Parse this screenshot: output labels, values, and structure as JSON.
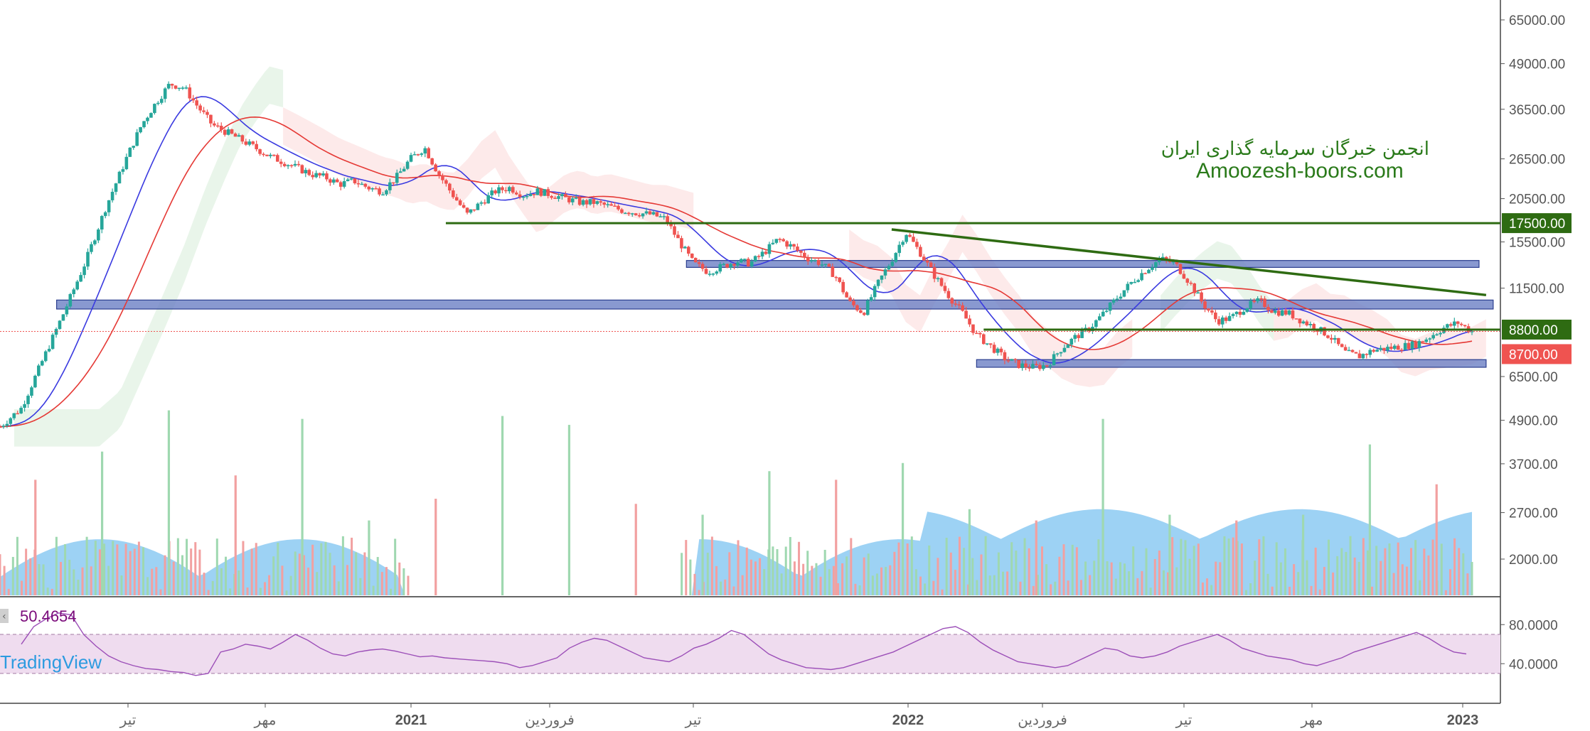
{
  "watermark": {
    "persian": "انجمن خبرگان سرمایه گذاری ایران",
    "site": "Amoozesh-boors.com"
  },
  "brand": "TradingView",
  "colors": {
    "up": "#26a69a",
    "down": "#ef5350",
    "ma_fast": "#3a3ae0",
    "ma_slow": "#e53935",
    "level_line": "#2e6b12",
    "zone": "#6c80c4",
    "zone_border": "#2c3f8f",
    "rsi_line": "#9c4fb8",
    "rsi_band": "#efdcef",
    "volume": "#7cc3f0",
    "last_price": "#ef5350"
  },
  "chart_data": [
    {
      "type": "candlestick",
      "scale": "log",
      "y_ticks": [
        "65000.00",
        "49000.00",
        "36500.00",
        "26500.00",
        "20500.00",
        "15500.00",
        "11500.00",
        "6500.00",
        "4900.00",
        "3700.00",
        "2700.00",
        "2000.00"
      ],
      "x_ticks": [
        {
          "label": "تیر",
          "year": false
        },
        {
          "label": "مهر",
          "year": false
        },
        {
          "label": "2021",
          "year": true
        },
        {
          "label": "فروردین",
          "year": false
        },
        {
          "label": "تیر",
          "year": false
        },
        {
          "label": "2022",
          "year": true
        },
        {
          "label": "فروردین",
          "year": false
        },
        {
          "label": "تیر",
          "year": false
        },
        {
          "label": "مهر",
          "year": false
        },
        {
          "label": "2023",
          "year": true
        }
      ],
      "price_path": [
        [
          0,
          4700
        ],
        [
          3,
          5300
        ],
        [
          6,
          7200
        ],
        [
          9,
          9800
        ],
        [
          12,
          13500
        ],
        [
          15,
          19500
        ],
        [
          18,
          27000
        ],
        [
          20,
          33000
        ],
        [
          22,
          38000
        ],
        [
          24,
          43000
        ],
        [
          26,
          42000
        ],
        [
          28,
          37000
        ],
        [
          30,
          33000
        ],
        [
          32,
          31500
        ],
        [
          34,
          30000
        ],
        [
          36,
          28500
        ],
        [
          38,
          27000
        ],
        [
          40,
          26000
        ],
        [
          42,
          25000
        ],
        [
          44,
          24000
        ],
        [
          46,
          23500
        ],
        [
          48,
          22500
        ],
        [
          50,
          23000
        ],
        [
          52,
          22000
        ],
        [
          54,
          21500
        ],
        [
          56,
          23500
        ],
        [
          58,
          26500
        ],
        [
          60,
          28500
        ],
        [
          62,
          24000
        ],
        [
          64,
          21000
        ],
        [
          66,
          18500
        ],
        [
          68,
          20000
        ],
        [
          70,
          21500
        ],
        [
          72,
          22000
        ],
        [
          74,
          21000
        ],
        [
          76,
          21500
        ],
        [
          78,
          21000
        ],
        [
          80,
          20500
        ],
        [
          82,
          20000
        ],
        [
          84,
          20000
        ],
        [
          86,
          19500
        ],
        [
          88,
          19000
        ],
        [
          90,
          18700
        ],
        [
          92,
          18500
        ],
        [
          94,
          18000
        ],
        [
          96,
          15500
        ],
        [
          98,
          13500
        ],
        [
          100,
          12800
        ],
        [
          102,
          13200
        ],
        [
          104,
          13700
        ],
        [
          106,
          13500
        ],
        [
          108,
          14500
        ],
        [
          110,
          15800
        ],
        [
          112,
          15000
        ],
        [
          114,
          14000
        ],
        [
          116,
          13500
        ],
        [
          118,
          12500
        ],
        [
          120,
          10500
        ],
        [
          122,
          9800
        ],
        [
          124,
          11800
        ],
        [
          126,
          13800
        ],
        [
          128,
          16500
        ],
        [
          130,
          14500
        ],
        [
          132,
          12500
        ],
        [
          134,
          11000
        ],
        [
          136,
          9800
        ],
        [
          138,
          8500
        ],
        [
          140,
          7900
        ],
        [
          142,
          7300
        ],
        [
          144,
          7000
        ],
        [
          146,
          6900
        ],
        [
          148,
          7000
        ],
        [
          150,
          7800
        ],
        [
          152,
          8400
        ],
        [
          154,
          8900
        ],
        [
          156,
          9800
        ],
        [
          158,
          10900
        ],
        [
          160,
          12000
        ],
        [
          162,
          13000
        ],
        [
          164,
          13900
        ],
        [
          166,
          13500
        ],
        [
          168,
          12000
        ],
        [
          170,
          10400
        ],
        [
          172,
          9300
        ],
        [
          174,
          9500
        ],
        [
          176,
          10200
        ],
        [
          178,
          10600
        ],
        [
          180,
          9900
        ],
        [
          182,
          9800
        ],
        [
          184,
          9300
        ],
        [
          186,
          8900
        ],
        [
          188,
          8400
        ],
        [
          190,
          7600
        ],
        [
          192,
          7400
        ],
        [
          194,
          7700
        ],
        [
          196,
          7800
        ],
        [
          198,
          7900
        ],
        [
          200,
          8000
        ],
        [
          202,
          8400
        ],
        [
          204,
          8900
        ],
        [
          206,
          9200
        ],
        [
          208,
          8700
        ]
      ],
      "volume_peaks": [
        3300,
        4000,
        5300,
        3400,
        5000,
        2500,
        2900,
        5100,
        4800,
        2800,
        2600,
        3500,
        3300,
        3700,
        2700,
        2500,
        5000,
        2600,
        2500,
        2600,
        4200,
        3200
      ]
    },
    {
      "type": "line",
      "name": "RSI",
      "last_value": "50.4654",
      "y_ticks": [
        "80.0000",
        "40.0000"
      ],
      "band": [
        30,
        70
      ],
      "values": [
        60,
        78,
        86,
        92,
        90,
        70,
        58,
        48,
        42,
        38,
        35,
        34,
        32,
        31,
        28,
        30,
        52,
        55,
        60,
        58,
        55,
        62,
        70,
        64,
        56,
        50,
        48,
        52,
        54,
        55,
        53,
        50,
        47,
        48,
        46,
        45,
        44,
        43,
        42,
        40,
        36,
        38,
        42,
        46,
        56,
        62,
        66,
        64,
        58,
        52,
        46,
        44,
        42,
        48,
        56,
        60,
        66,
        74,
        70,
        60,
        50,
        44,
        40,
        36,
        35,
        34,
        36,
        40,
        44,
        48,
        52,
        58,
        64,
        70,
        76,
        78,
        72,
        62,
        54,
        48,
        42,
        40,
        38,
        36,
        38,
        44,
        50,
        56,
        54,
        48,
        46,
        48,
        52,
        58,
        62,
        66,
        70,
        64,
        56,
        52,
        48,
        46,
        44,
        40,
        38,
        42,
        46,
        52,
        56,
        60,
        64,
        68,
        72,
        66,
        58,
        52,
        50
      ]
    }
  ],
  "annotations": {
    "levels": [
      {
        "price": 17500,
        "label": "17500.00"
      },
      {
        "price": 8800,
        "label": "8800.00"
      }
    ],
    "last_price": {
      "price": 8700,
      "label": "8700.00"
    },
    "zones": [
      {
        "from": 10050,
        "to": 10650,
        "start": 8,
        "end": 211
      },
      {
        "from": 13150,
        "to": 13750,
        "start": 97,
        "end": 209
      },
      {
        "from": 6900,
        "to": 7250,
        "start": 138,
        "end": 210
      }
    ],
    "trendline": [
      {
        "t": 126,
        "price": 16800
      },
      {
        "t": 210,
        "price": 11000
      }
    ],
    "support_line": {
      "price": 17500,
      "start": 63
    }
  }
}
